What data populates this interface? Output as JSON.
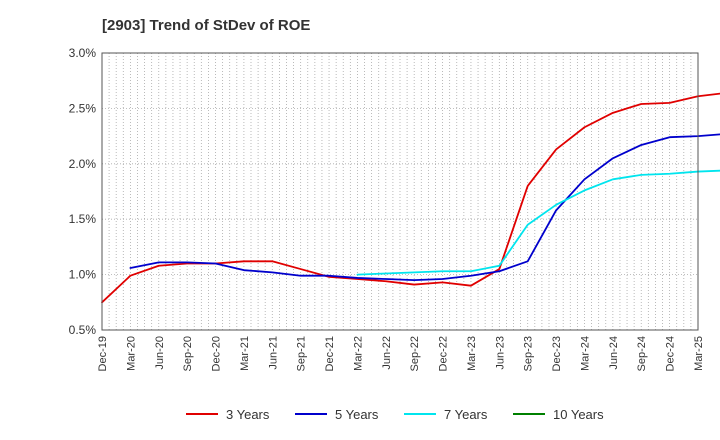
{
  "chart_data": {
    "type": "line",
    "title": "[2903]  Trend of StDev of ROE",
    "xlabel": "",
    "ylabel": "",
    "ylim": [
      0.5,
      3.0
    ],
    "y_ticks": [
      0.5,
      1.0,
      1.5,
      2.0,
      2.5,
      3.0
    ],
    "y_tick_labels": [
      "0.5%",
      "1.0%",
      "1.5%",
      "2.0%",
      "2.5%",
      "3.0%"
    ],
    "x_ticks": [
      "Dec-19",
      "Mar-20",
      "Jun-20",
      "Sep-20",
      "Dec-20",
      "Mar-21",
      "Jun-21",
      "Sep-21",
      "Dec-21",
      "Mar-22",
      "Jun-22",
      "Sep-22",
      "Dec-22",
      "Mar-23",
      "Jun-23",
      "Sep-23",
      "Dec-23",
      "Mar-24",
      "Jun-24",
      "Sep-24",
      "Dec-24",
      "Mar-25"
    ],
    "grid": true,
    "legend_position": "bottom",
    "series": [
      {
        "name": "3 Years",
        "color": "#e00000",
        "start_quarter": 0,
        "values": [
          0.75,
          0.99,
          1.08,
          1.1,
          1.1,
          1.12,
          1.12,
          1.05,
          0.98,
          0.96,
          0.94,
          0.91,
          0.93,
          0.9,
          1.05,
          1.8,
          2.13,
          2.33,
          2.46,
          2.54,
          2.55,
          2.61,
          2.64,
          2.65,
          2.65
        ]
      },
      {
        "name": "5 Years",
        "color": "#0000cc",
        "start_quarter": 1,
        "values": [
          1.06,
          1.11,
          1.11,
          1.1,
          1.04,
          1.02,
          0.99,
          0.99,
          0.97,
          0.96,
          0.95,
          0.96,
          0.99,
          1.03,
          1.12,
          1.58,
          1.86,
          2.05,
          2.17,
          2.24,
          2.25,
          2.27,
          2.28,
          2.28,
          2.24
        ]
      },
      {
        "name": "7 Years",
        "color": "#00e5ee",
        "start_quarter": 9,
        "values": [
          1.0,
          1.01,
          1.02,
          1.03,
          1.03,
          1.08,
          1.45,
          1.63,
          1.76,
          1.86,
          1.9,
          1.91,
          1.93,
          1.94,
          1.95,
          1.96
        ]
      },
      {
        "name": "10 Years",
        "color": "#008000",
        "start_quarter": 0,
        "values": []
      }
    ]
  }
}
